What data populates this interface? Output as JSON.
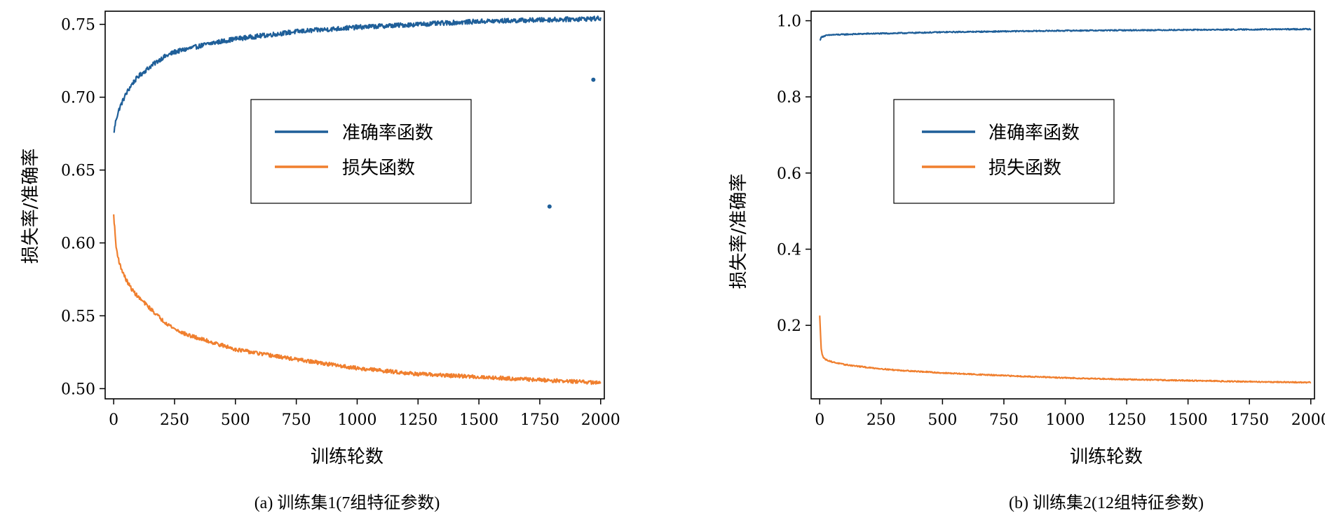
{
  "colors": {
    "accuracy": "#1f5f99",
    "loss": "#f07f2e",
    "axis": "#000000"
  },
  "chart_data": [
    {
      "type": "line",
      "caption": "(a) 训练集1(7组特征参数)",
      "xlabel": "训练轮数",
      "ylabel": "损失率/准确率",
      "xlim": [
        -35,
        2015
      ],
      "ylim": [
        0.493,
        0.759
      ],
      "xticks": [
        0,
        250,
        500,
        750,
        1000,
        1250,
        1500,
        1750,
        2000
      ],
      "yticks": [
        0.5,
        0.55,
        0.6,
        0.65,
        0.7,
        0.75
      ],
      "ytick_labels": [
        "0.50",
        "0.55",
        "0.60",
        "0.65",
        "0.70",
        "0.75"
      ],
      "grid": false,
      "legend_position": "center",
      "series": [
        {
          "name": "准确率函数",
          "color": "#1f5f99",
          "noise": 0.0016,
          "x": [
            0,
            10,
            25,
            50,
            75,
            100,
            150,
            200,
            250,
            300,
            400,
            500,
            600,
            750,
            1000,
            1250,
            1500,
            1750,
            2000
          ],
          "y": [
            0.675,
            0.685,
            0.693,
            0.702,
            0.709,
            0.714,
            0.721,
            0.727,
            0.731,
            0.733,
            0.737,
            0.74,
            0.742,
            0.745,
            0.748,
            0.75,
            0.752,
            0.753,
            0.754
          ]
        },
        {
          "name": "损失函数",
          "color": "#f07f2e",
          "noise": 0.0013,
          "x": [
            0,
            10,
            25,
            50,
            75,
            100,
            150,
            200,
            250,
            300,
            400,
            500,
            600,
            750,
            1000,
            1250,
            1500,
            1750,
            2000
          ],
          "y": [
            0.619,
            0.597,
            0.585,
            0.575,
            0.568,
            0.563,
            0.555,
            0.547,
            0.541,
            0.537,
            0.532,
            0.527,
            0.524,
            0.52,
            0.514,
            0.51,
            0.508,
            0.506,
            0.504
          ]
        }
      ],
      "outliers": [
        {
          "x": 1790,
          "y": 0.625
        },
        {
          "x": 1970,
          "y": 0.712
        }
      ]
    },
    {
      "type": "line",
      "caption": "(b) 训练集2(12组特征参数)",
      "xlabel": "训练轮数",
      "ylabel": "损失率/准确率",
      "xlim": [
        -35,
        2015
      ],
      "ylim": [
        0.007,
        1.025
      ],
      "xticks": [
        0,
        250,
        500,
        750,
        1000,
        1250,
        1500,
        1750,
        2000
      ],
      "yticks": [
        0.2,
        0.4,
        0.6,
        0.8,
        1.0
      ],
      "ytick_labels": [
        "0.2",
        "0.4",
        "0.6",
        "0.8",
        "1.0"
      ],
      "grid": false,
      "legend_position": "center",
      "series": [
        {
          "name": "准确率函数",
          "color": "#1f5f99",
          "noise": 0.0015,
          "x": [
            0,
            5,
            10,
            25,
            50,
            100,
            200,
            300,
            500,
            750,
            1000,
            1250,
            1500,
            1750,
            2000
          ],
          "y": [
            0.948,
            0.955,
            0.958,
            0.961,
            0.963,
            0.964,
            0.966,
            0.967,
            0.97,
            0.972,
            0.974,
            0.975,
            0.976,
            0.977,
            0.978
          ]
        },
        {
          "name": "损失函数",
          "color": "#f07f2e",
          "noise": 0.0015,
          "x": [
            0,
            3,
            6,
            10,
            15,
            25,
            50,
            100,
            200,
            300,
            500,
            750,
            1000,
            1250,
            1500,
            1750,
            2000
          ],
          "y": [
            0.225,
            0.18,
            0.14,
            0.125,
            0.115,
            0.11,
            0.104,
            0.097,
            0.089,
            0.083,
            0.075,
            0.068,
            0.062,
            0.058,
            0.055,
            0.052,
            0.05
          ]
        }
      ],
      "outliers": []
    }
  ]
}
